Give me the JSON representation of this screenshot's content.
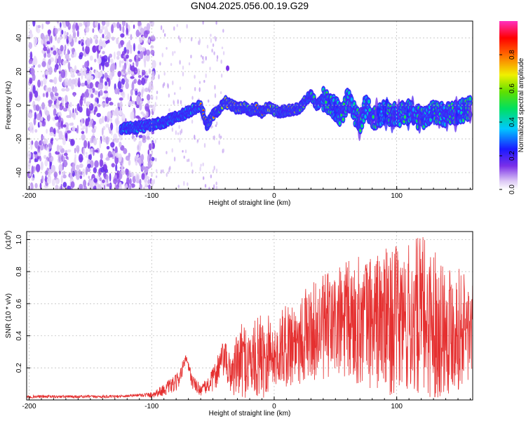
{
  "title": "GN04.2025.056.00.19.G29",
  "chart_data": [
    {
      "type": "heatmap",
      "xlabel": "Height of straight line (km)",
      "ylabel": "Frequency (Hz)",
      "xlim": [
        -202,
        162
      ],
      "ylim": [
        -50,
        50
      ],
      "x_ticks": [
        -200,
        -100,
        0,
        100
      ],
      "x_tick_labels": [
        "-200",
        "-100",
        "0",
        "100"
      ],
      "y_ticks": [
        -40,
        -20,
        0,
        20,
        40
      ],
      "y_tick_labels": [
        "-40",
        "-20",
        "0",
        "20",
        "40"
      ],
      "colorbar": {
        "label": "Normalized spectral amplitude",
        "range": [
          0,
          1
        ],
        "ticks": [
          0.0,
          0.2,
          0.4,
          0.6,
          0.8
        ],
        "tick_labels": [
          "0.0",
          "0.2",
          "0.4",
          "0.6",
          "0.8"
        ],
        "colormap": "rainbow (white-violet-blue-cyan-green-yellow-red-magenta)"
      },
      "noise_region_x": [
        -200,
        -100
      ],
      "ridge": {
        "x": [
          -125,
          -110,
          -100,
          -90,
          -80,
          -70,
          -60,
          -55,
          -50,
          -45,
          -40,
          -35,
          -30,
          -25,
          -20,
          -15,
          -10,
          -5,
          0,
          5,
          10,
          15,
          20,
          25,
          30,
          35,
          40,
          45,
          50,
          55,
          60,
          65,
          70,
          75,
          80,
          90,
          100,
          110,
          120,
          130,
          140,
          150,
          160
        ],
        "y": [
          -14,
          -13,
          -12,
          -10,
          -7,
          -4,
          0,
          -12,
          -6,
          -2,
          2,
          0,
          -2,
          -1,
          -3,
          -2,
          -4,
          -1,
          -3,
          -4,
          -3,
          -3,
          -2,
          2,
          6,
          0,
          4,
          0,
          -2,
          -6,
          4,
          -4,
          -10,
          0,
          -8,
          -4,
          -6,
          -4,
          -8,
          -4,
          -6,
          -4,
          -2
        ]
      }
    },
    {
      "type": "line",
      "xlabel": "Height of straight line (km)",
      "ylabel": "SNR (10 * v/v)",
      "y_scale_label": "(x10",
      "y_scale_exponent": "4",
      "xlim": [
        -202,
        162
      ],
      "ylim": [
        0,
        1.05
      ],
      "x_ticks": [
        -200,
        -100,
        0,
        100
      ],
      "x_tick_labels": [
        "-200",
        "-100",
        "0",
        "100"
      ],
      "y_ticks": [
        0.2,
        0.4,
        0.6,
        0.8,
        1.0
      ],
      "y_tick_labels": [
        "0.2",
        "0.4",
        "0.6",
        "0.8",
        "1.0"
      ],
      "series": [
        {
          "color": "#e53030",
          "x": [
            -202,
            -190,
            -170,
            -150,
            -130,
            -110,
            -100,
            -90,
            -80,
            -75,
            -72,
            -70,
            -68,
            -65,
            -60,
            -55,
            -50,
            -45,
            -40,
            -38,
            -35,
            -30,
            -25,
            -20,
            -15,
            -10,
            -5,
            -3,
            0,
            5,
            10,
            15,
            20,
            25,
            30,
            40,
            50,
            60,
            70,
            80,
            90,
            100,
            110,
            120,
            130,
            140,
            150,
            162
          ],
          "y": [
            0.02,
            0.02,
            0.02,
            0.02,
            0.02,
            0.03,
            0.03,
            0.06,
            0.1,
            0.18,
            0.26,
            0.2,
            0.14,
            0.09,
            0.06,
            0.08,
            0.12,
            0.2,
            0.26,
            0.18,
            0.16,
            0.2,
            0.24,
            0.18,
            0.22,
            0.28,
            0.24,
            0.3,
            0.24,
            0.3,
            0.32,
            0.34,
            0.36,
            0.38,
            0.4,
            0.42,
            0.44,
            0.45,
            0.46,
            0.46,
            0.45,
            0.46,
            0.45,
            0.44,
            0.44,
            0.43,
            0.42,
            0.4
          ],
          "envelope_max": [
            0.03,
            0.03,
            0.03,
            0.03,
            0.03,
            0.04,
            0.05,
            0.1,
            0.16,
            0.24,
            0.28,
            0.24,
            0.2,
            0.14,
            0.1,
            0.13,
            0.2,
            0.33,
            0.38,
            0.3,
            0.32,
            0.42,
            0.5,
            0.46,
            0.5,
            0.56,
            0.62,
            0.5,
            0.42,
            0.55,
            0.6,
            0.64,
            0.68,
            0.7,
            0.72,
            0.78,
            0.82,
            0.88,
            0.9,
            0.92,
            0.95,
            0.96,
            0.98,
            1.04,
            0.96,
            0.9,
            0.84,
            0.76
          ]
        }
      ]
    }
  ]
}
